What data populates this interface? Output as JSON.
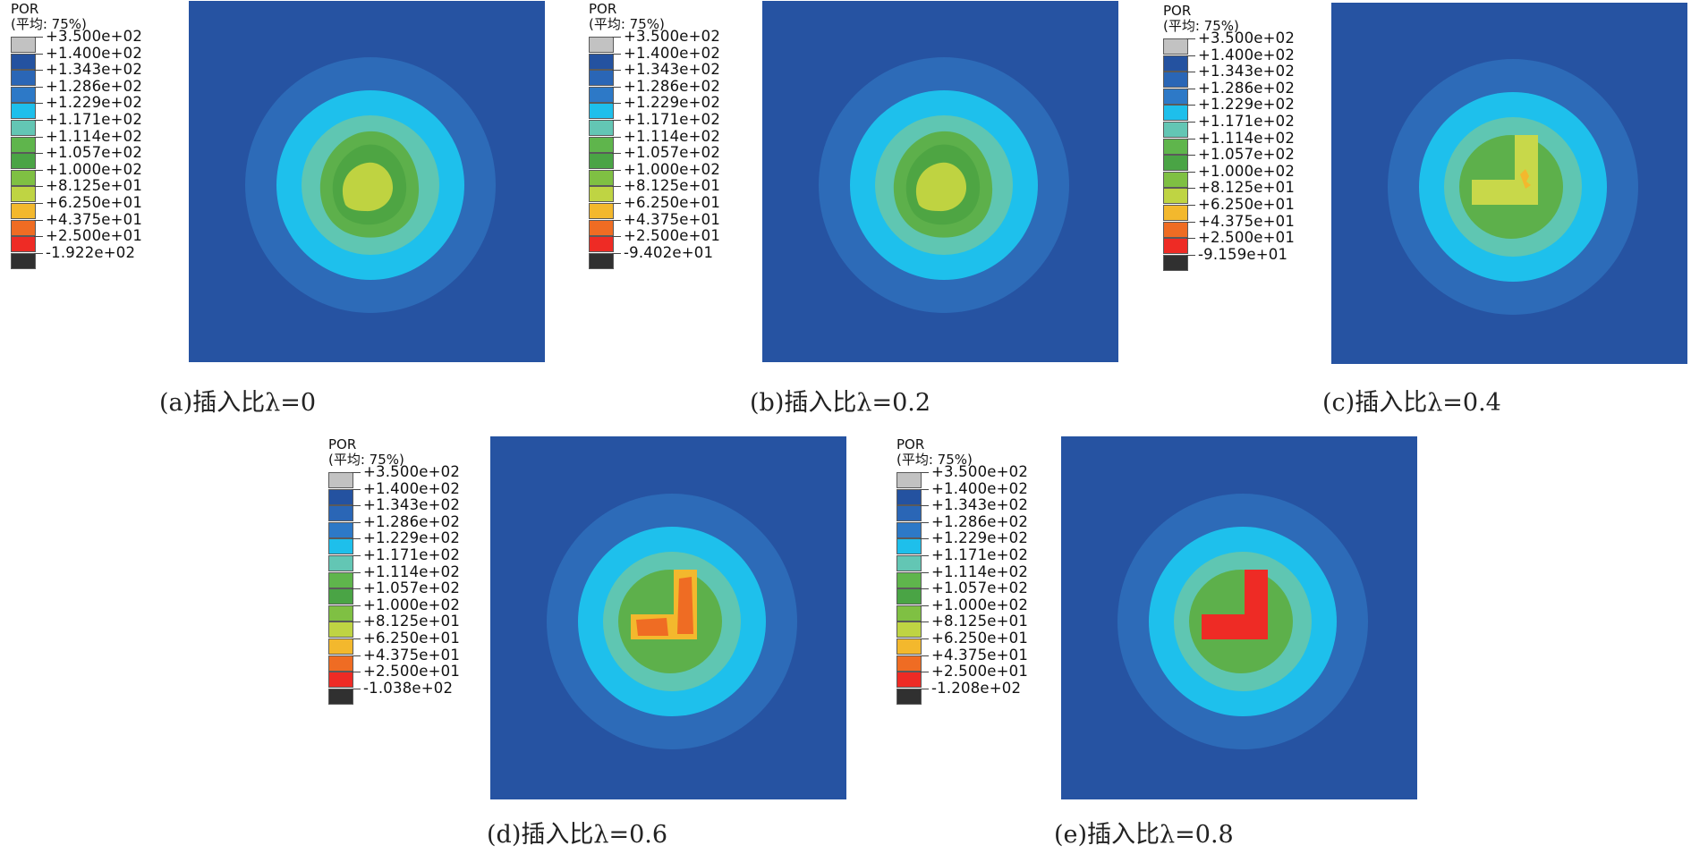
{
  "colormap": [
    "#c2c2c2",
    "#2452a0",
    "#2a66b6",
    "#2d79c7",
    "#1ebfeb",
    "#63c6b4",
    "#5fb54c",
    "#4aa445",
    "#7fc043",
    "#bfd443",
    "#f3b82d",
    "#ef6c23",
    "#ee2b25",
    "#303030"
  ],
  "panels": [
    {
      "legend": {
        "variable": "POR",
        "averaging": "(平均: 75%)",
        "values": [
          "+3.500e+02",
          "+1.400e+02",
          "+1.343e+02",
          "+1.286e+02",
          "+1.229e+02",
          "+1.171e+02",
          "+1.114e+02",
          "+1.057e+02",
          "+1.000e+02",
          "+8.125e+01",
          "+6.250e+01",
          "+4.375e+01",
          "+2.500e+01",
          "-1.922e+02"
        ]
      },
      "caption": "(a)插入比λ=0",
      "shape": "blob"
    },
    {
      "legend": {
        "variable": "POR",
        "averaging": "(平均: 75%)",
        "values": [
          "+3.500e+02",
          "+1.400e+02",
          "+1.343e+02",
          "+1.286e+02",
          "+1.229e+02",
          "+1.171e+02",
          "+1.114e+02",
          "+1.057e+02",
          "+1.000e+02",
          "+8.125e+01",
          "+6.250e+01",
          "+4.375e+01",
          "+2.500e+01",
          "-9.402e+01"
        ]
      },
      "caption": "(b)插入比λ=0.2",
      "shape": "blob"
    },
    {
      "legend": {
        "variable": "POR",
        "averaging": "(平均: 75%)",
        "values": [
          "+3.500e+02",
          "+1.400e+02",
          "+1.343e+02",
          "+1.286e+02",
          "+1.229e+02",
          "+1.171e+02",
          "+1.114e+02",
          "+1.057e+02",
          "+1.000e+02",
          "+8.125e+01",
          "+6.250e+01",
          "+4.375e+01",
          "+2.500e+01",
          "-9.159e+01"
        ]
      },
      "caption": "(c)插入比λ=0.4",
      "shape": "lshape-yellow"
    },
    {
      "legend": {
        "variable": "POR",
        "averaging": "(平均: 75%)",
        "values": [
          "+3.500e+02",
          "+1.400e+02",
          "+1.343e+02",
          "+1.286e+02",
          "+1.229e+02",
          "+1.171e+02",
          "+1.114e+02",
          "+1.057e+02",
          "+1.000e+02",
          "+8.125e+01",
          "+6.250e+01",
          "+4.375e+01",
          "+2.500e+01",
          "-1.038e+02"
        ]
      },
      "caption": "(d)插入比λ=0.6",
      "shape": "lshape-orange"
    },
    {
      "legend": {
        "variable": "POR",
        "averaging": "(平均: 75%)",
        "values": [
          "+3.500e+02",
          "+1.400e+02",
          "+1.343e+02",
          "+1.286e+02",
          "+1.229e+02",
          "+1.171e+02",
          "+1.114e+02",
          "+1.057e+02",
          "+1.000e+02",
          "+8.125e+01",
          "+6.250e+01",
          "+4.375e+01",
          "+2.500e+01",
          "-1.208e+02"
        ]
      },
      "caption": "(e)插入比λ=0.8",
      "shape": "lshape-red"
    }
  ]
}
